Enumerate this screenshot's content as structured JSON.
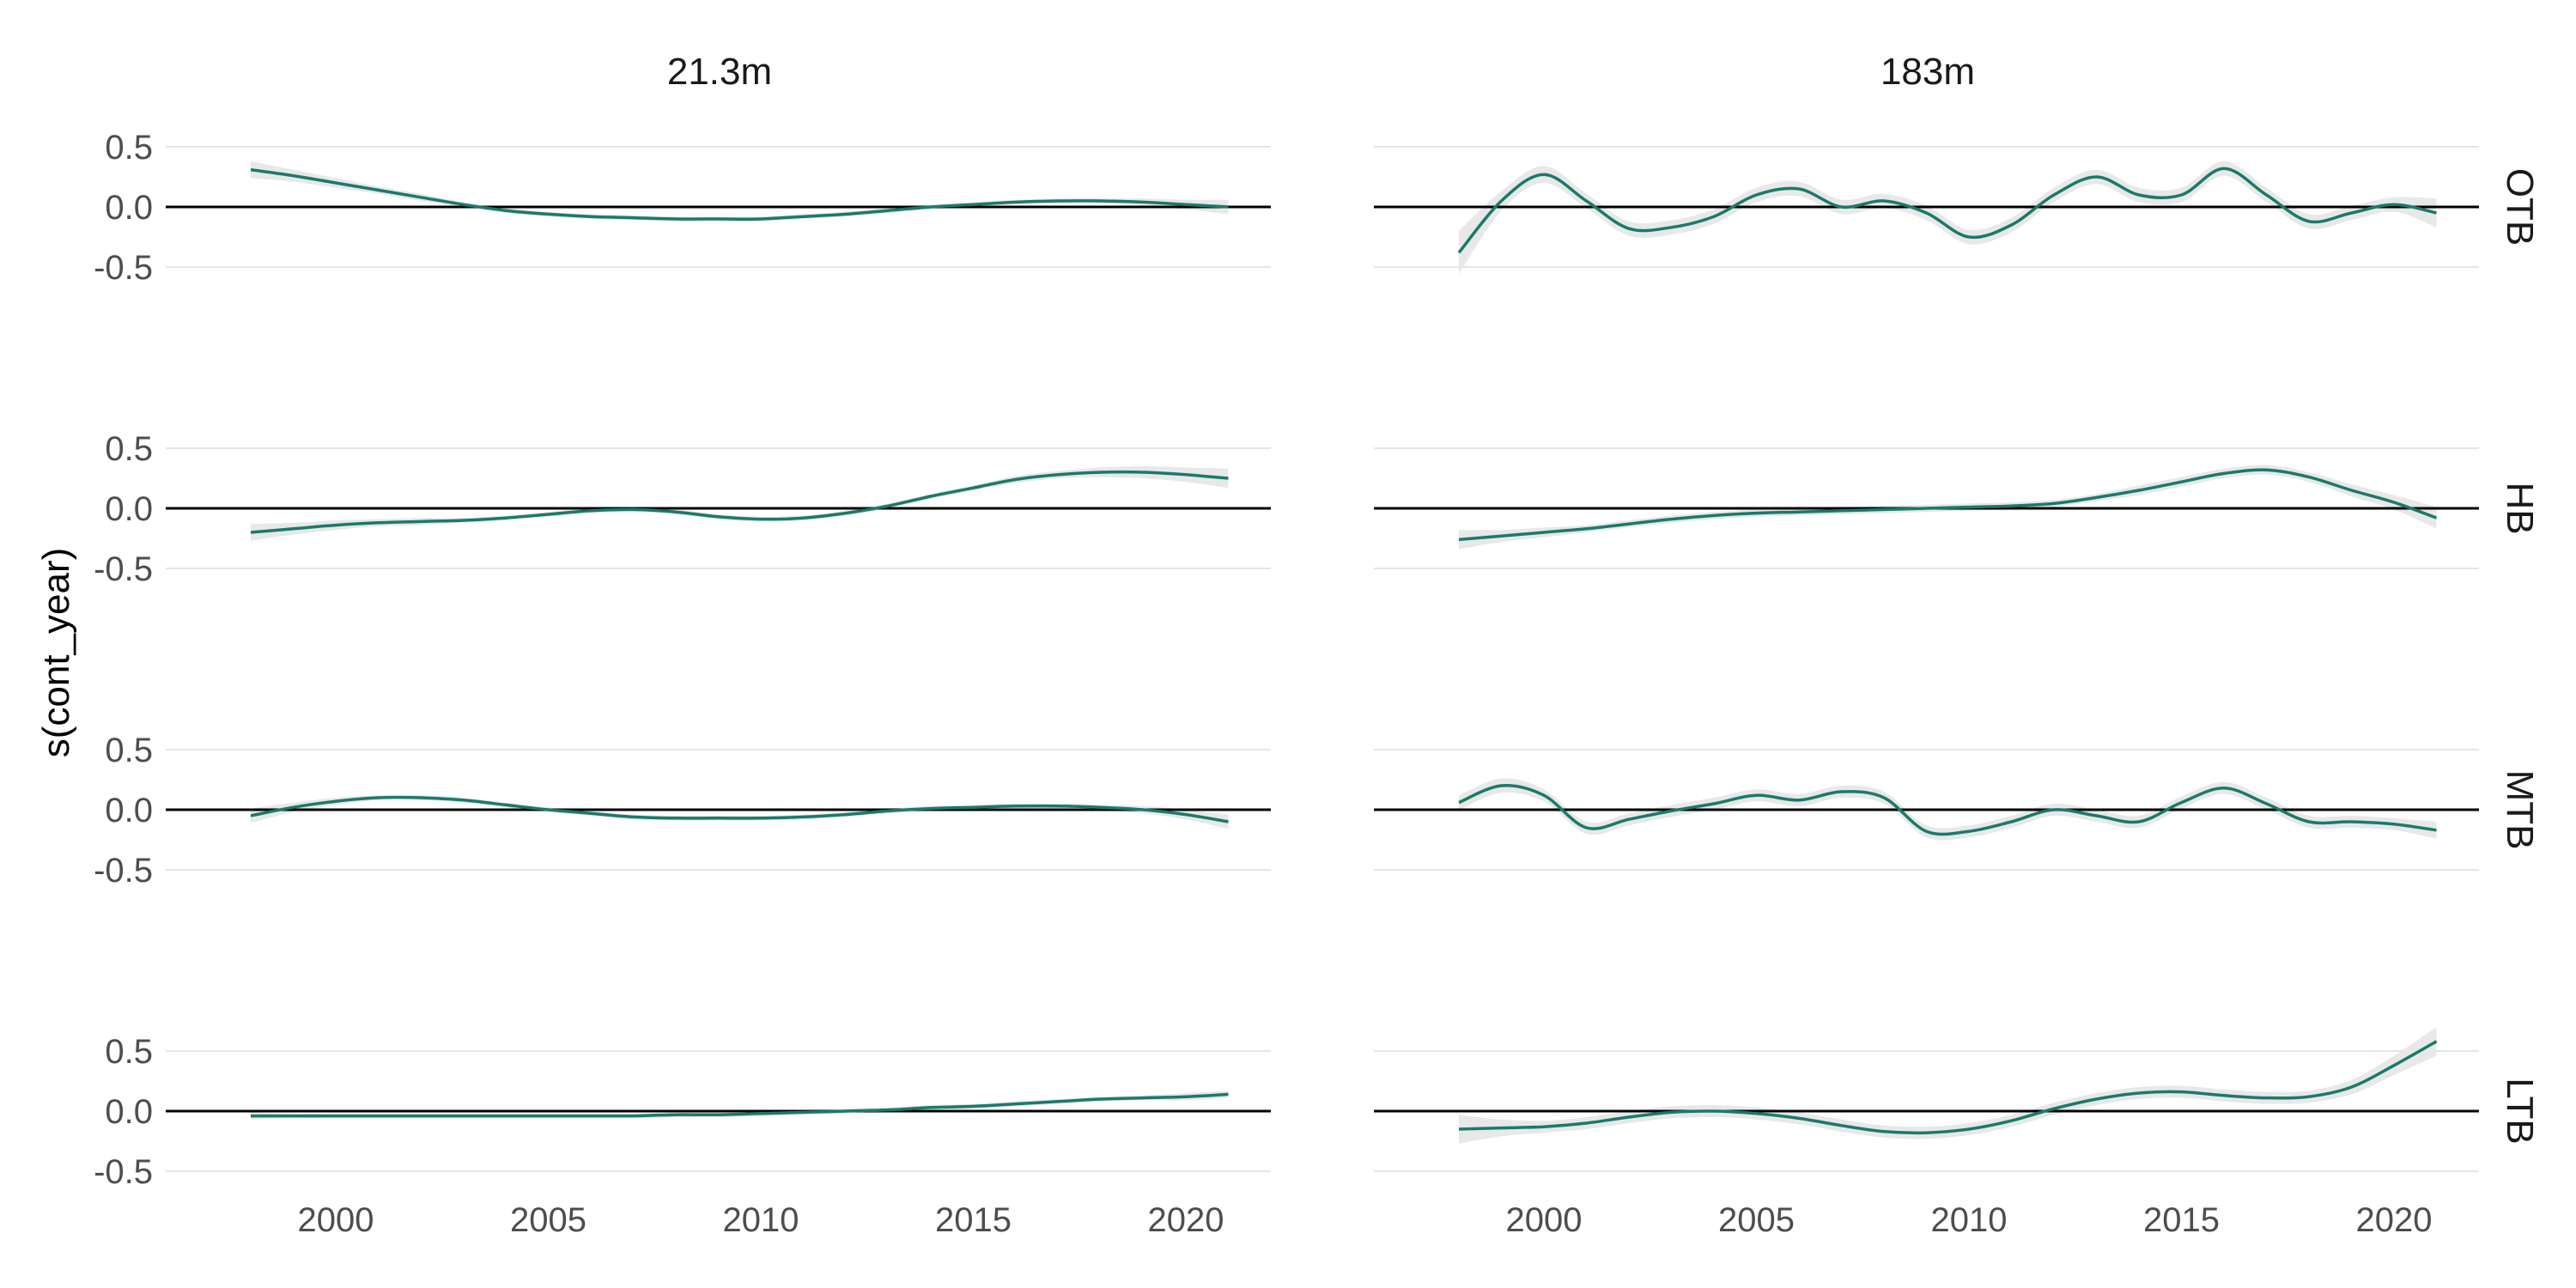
{
  "chart_data": {
    "type": "line",
    "title": "",
    "ylabel": "s(cont_year)",
    "xlabel": "",
    "columns": [
      "21.3m",
      "183m"
    ],
    "rows": [
      "OTB",
      "HB",
      "MTB",
      "LTB"
    ],
    "xlim": [
      1996,
      2022
    ],
    "ylim": [
      -0.5,
      0.5
    ],
    "x_ticks": [
      2000,
      2005,
      2010,
      2015,
      2020
    ],
    "y_ticks": [
      "0.5",
      "0.0",
      "-0.5"
    ],
    "x": [
      1998,
      1999,
      2000,
      2001,
      2002,
      2003,
      2004,
      2005,
      2006,
      2007,
      2008,
      2009,
      2010,
      2011,
      2012,
      2013,
      2014,
      2015,
      2016,
      2017,
      2018,
      2019,
      2020,
      2021
    ],
    "grid": true,
    "colors": {
      "line": "#1a7a6a",
      "ribbon": "#e8e8e8",
      "zero_line": "#000000",
      "grid": "#e5e5e5"
    },
    "panels": [
      {
        "row": "OTB",
        "column": "21.3m",
        "values": [
          0.31,
          0.26,
          0.2,
          0.14,
          0.08,
          0.02,
          -0.03,
          -0.06,
          -0.08,
          -0.09,
          -0.1,
          -0.1,
          -0.1,
          -0.08,
          -0.06,
          -0.03,
          0.0,
          0.02,
          0.04,
          0.05,
          0.05,
          0.04,
          0.02,
          0.0
        ],
        "ci": [
          0.07,
          0.05,
          0.04,
          0.03,
          0.03,
          0.02,
          0.02,
          0.02,
          0.02,
          0.02,
          0.02,
          0.02,
          0.02,
          0.02,
          0.02,
          0.02,
          0.02,
          0.02,
          0.02,
          0.02,
          0.02,
          0.03,
          0.04,
          0.06
        ]
      },
      {
        "row": "OTB",
        "column": "183m",
        "values": [
          -0.38,
          0.05,
          0.27,
          0.05,
          -0.18,
          -0.17,
          -0.08,
          0.1,
          0.15,
          0.0,
          0.05,
          -0.05,
          -0.25,
          -0.15,
          0.1,
          0.25,
          0.1,
          0.1,
          0.32,
          0.1,
          -0.12,
          -0.05,
          0.02,
          -0.05
        ],
        "ci": [
          0.18,
          0.08,
          0.07,
          0.06,
          0.06,
          0.06,
          0.06,
          0.06,
          0.06,
          0.06,
          0.06,
          0.06,
          0.06,
          0.06,
          0.06,
          0.06,
          0.06,
          0.06,
          0.06,
          0.06,
          0.06,
          0.06,
          0.06,
          0.12
        ]
      },
      {
        "row": "HB",
        "column": "21.3m",
        "values": [
          -0.2,
          -0.17,
          -0.14,
          -0.12,
          -0.11,
          -0.1,
          -0.08,
          -0.05,
          -0.02,
          -0.01,
          -0.03,
          -0.07,
          -0.09,
          -0.08,
          -0.04,
          0.02,
          0.1,
          0.17,
          0.24,
          0.28,
          0.3,
          0.3,
          0.28,
          0.25
        ],
        "ci": [
          0.07,
          0.05,
          0.04,
          0.03,
          0.03,
          0.02,
          0.02,
          0.02,
          0.02,
          0.02,
          0.02,
          0.02,
          0.02,
          0.02,
          0.02,
          0.02,
          0.02,
          0.02,
          0.03,
          0.03,
          0.04,
          0.05,
          0.06,
          0.08
        ]
      },
      {
        "row": "HB",
        "column": "183m",
        "values": [
          -0.26,
          -0.23,
          -0.2,
          -0.17,
          -0.13,
          -0.09,
          -0.06,
          -0.04,
          -0.03,
          -0.02,
          -0.01,
          0.0,
          0.01,
          0.02,
          0.04,
          0.09,
          0.15,
          0.22,
          0.29,
          0.32,
          0.26,
          0.15,
          0.05,
          -0.08
        ],
        "ci": [
          0.08,
          0.05,
          0.04,
          0.03,
          0.03,
          0.03,
          0.03,
          0.03,
          0.03,
          0.03,
          0.03,
          0.03,
          0.03,
          0.03,
          0.03,
          0.03,
          0.04,
          0.04,
          0.04,
          0.04,
          0.04,
          0.05,
          0.06,
          0.09
        ]
      },
      {
        "row": "MTB",
        "column": "21.3m",
        "values": [
          -0.05,
          0.02,
          0.07,
          0.1,
          0.1,
          0.08,
          0.04,
          0.0,
          -0.03,
          -0.06,
          -0.07,
          -0.07,
          -0.07,
          -0.06,
          -0.04,
          -0.01,
          0.01,
          0.02,
          0.03,
          0.03,
          0.02,
          0.0,
          -0.04,
          -0.1
        ],
        "ci": [
          0.06,
          0.04,
          0.03,
          0.02,
          0.02,
          0.02,
          0.02,
          0.02,
          0.02,
          0.02,
          0.02,
          0.02,
          0.02,
          0.02,
          0.02,
          0.02,
          0.02,
          0.02,
          0.02,
          0.02,
          0.02,
          0.03,
          0.04,
          0.06
        ]
      },
      {
        "row": "MTB",
        "column": "183m",
        "values": [
          0.06,
          0.2,
          0.12,
          -0.15,
          -0.08,
          -0.01,
          0.05,
          0.12,
          0.08,
          0.15,
          0.1,
          -0.18,
          -0.18,
          -0.1,
          0.0,
          -0.05,
          -0.1,
          0.06,
          0.18,
          0.05,
          -0.1,
          -0.1,
          -0.12,
          -0.17
        ],
        "ci": [
          0.06,
          0.06,
          0.05,
          0.05,
          0.05,
          0.05,
          0.05,
          0.05,
          0.05,
          0.05,
          0.05,
          0.05,
          0.05,
          0.05,
          0.05,
          0.05,
          0.05,
          0.05,
          0.05,
          0.05,
          0.05,
          0.05,
          0.05,
          0.07
        ]
      },
      {
        "row": "LTB",
        "column": "21.3m",
        "values": [
          -0.04,
          -0.04,
          -0.04,
          -0.04,
          -0.04,
          -0.04,
          -0.04,
          -0.04,
          -0.04,
          -0.04,
          -0.03,
          -0.03,
          -0.02,
          -0.01,
          0.0,
          0.01,
          0.03,
          0.04,
          0.06,
          0.08,
          0.1,
          0.11,
          0.12,
          0.14
        ],
        "ci": [
          0.03,
          0.02,
          0.02,
          0.02,
          0.02,
          0.02,
          0.02,
          0.02,
          0.02,
          0.02,
          0.02,
          0.02,
          0.02,
          0.02,
          0.02,
          0.02,
          0.02,
          0.02,
          0.02,
          0.02,
          0.02,
          0.02,
          0.03,
          0.03
        ]
      },
      {
        "row": "LTB",
        "column": "183m",
        "values": [
          -0.15,
          -0.14,
          -0.13,
          -0.1,
          -0.05,
          -0.01,
          0.0,
          -0.02,
          -0.06,
          -0.12,
          -0.17,
          -0.18,
          -0.15,
          -0.08,
          0.02,
          0.1,
          0.15,
          0.16,
          0.13,
          0.11,
          0.12,
          0.2,
          0.38,
          0.58
        ],
        "ci": [
          0.12,
          0.07,
          0.05,
          0.05,
          0.05,
          0.05,
          0.05,
          0.05,
          0.05,
          0.05,
          0.05,
          0.05,
          0.05,
          0.05,
          0.05,
          0.05,
          0.05,
          0.05,
          0.05,
          0.05,
          0.05,
          0.06,
          0.08,
          0.12
        ]
      }
    ]
  }
}
